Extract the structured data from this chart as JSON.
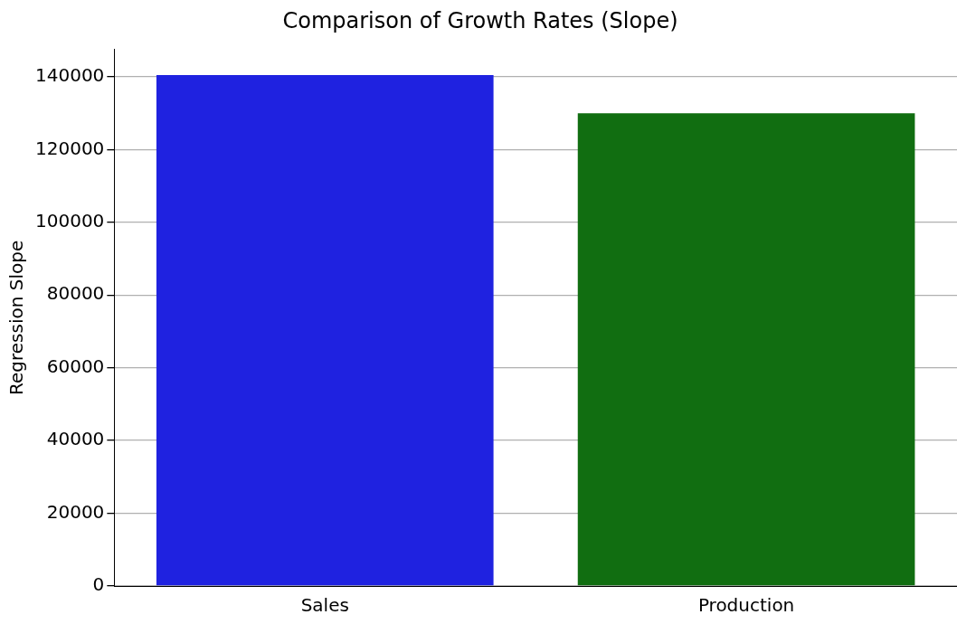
{
  "chart_data": {
    "type": "bar",
    "title": "Comparison of Growth Rates (Slope)",
    "ylabel": "Regression Slope",
    "categories": [
      "Sales",
      "Production"
    ],
    "values": [
      140500,
      130000
    ],
    "colors": [
      "#1f22e0",
      "#116e11"
    ],
    "ylim": [
      0,
      147500
    ],
    "yticks": [
      0,
      20000,
      40000,
      60000,
      80000,
      100000,
      120000,
      140000
    ],
    "grid": "y",
    "legend": false
  }
}
